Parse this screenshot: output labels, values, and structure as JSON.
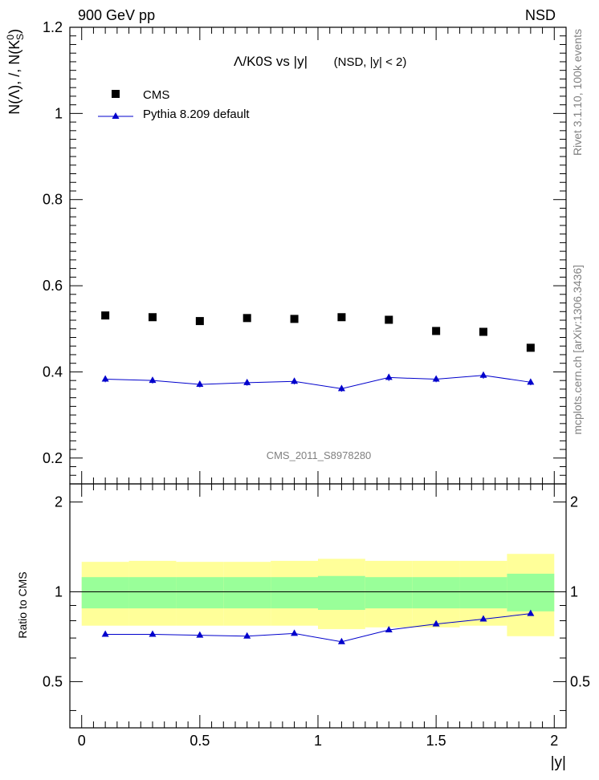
{
  "header": {
    "left": "900 GeV pp",
    "right": "NSD"
  },
  "side_labels": {
    "rivet": "Rivet 3.1.10,  100k events",
    "mcplots": "mcplots.cern.ch [arXiv:1306.3436]"
  },
  "chart_data": [
    {
      "type": "scatter",
      "title": "Λ/K0S vs |y|",
      "subtitle": "(NSD, |y| < 2)",
      "ylabel": "N(Λ), /, N(K",
      "ylabel_sup": "0",
      "ylabel_sub": "S",
      "ylabel_close": ")",
      "xlabel": "",
      "xlim": [
        -0.05,
        2.05
      ],
      "ylim": [
        0.14,
        1.2
      ],
      "yticks": [
        0.2,
        0.4,
        0.6,
        0.8,
        1,
        1.2
      ],
      "ytick_labels": [
        "0.2",
        "0.4",
        "0.6",
        "0.8",
        "1",
        "1.2"
      ],
      "watermark": "CMS_2011_S8978280",
      "legend_position": "top-left",
      "series": [
        {
          "name": "CMS",
          "marker": "square",
          "color": "#000000",
          "x": [
            0.1,
            0.3,
            0.5,
            0.7,
            0.9,
            1.1,
            1.3,
            1.5,
            1.7,
            1.9
          ],
          "y": [
            0.531,
            0.527,
            0.518,
            0.525,
            0.523,
            0.527,
            0.521,
            0.495,
            0.493,
            0.456
          ]
        },
        {
          "name": "Pythia 8.209 default",
          "marker": "triangle",
          "color": "#0000cc",
          "x": [
            0.1,
            0.3,
            0.5,
            0.7,
            0.9,
            1.1,
            1.3,
            1.5,
            1.7,
            1.9
          ],
          "y": [
            0.383,
            0.38,
            0.371,
            0.375,
            0.378,
            0.361,
            0.387,
            0.383,
            0.392,
            0.376
          ],
          "yerr": [
            0.007,
            0.007,
            0.007,
            0.007,
            0.007,
            0.007,
            0.008,
            0.007,
            0.008,
            0.007
          ]
        }
      ]
    },
    {
      "type": "line",
      "title": "",
      "ylabel": "Ratio to CMS",
      "xlabel": "|y|",
      "xlim": [
        -0.05,
        2.05
      ],
      "ylim": [
        0.35,
        2.3
      ],
      "xticks": [
        0,
        0.5,
        1,
        1.5,
        2
      ],
      "xtick_labels": [
        "0",
        "0.5",
        "1",
        "1.5",
        "2"
      ],
      "yticks": [
        0.5,
        1,
        2
      ],
      "ytick_labels": [
        "0.5",
        "1",
        "2"
      ],
      "bands": {
        "bin_edges": [
          0.0,
          0.2,
          0.4,
          0.6,
          0.8,
          1.0,
          1.2,
          1.4,
          1.6,
          1.8,
          2.0
        ],
        "stat_lo": [
          0.88,
          0.88,
          0.88,
          0.88,
          0.88,
          0.87,
          0.88,
          0.88,
          0.88,
          0.86
        ],
        "stat_hi": [
          1.12,
          1.12,
          1.12,
          1.12,
          1.12,
          1.13,
          1.12,
          1.12,
          1.12,
          1.15
        ],
        "total_lo": [
          0.77,
          0.77,
          0.77,
          0.77,
          0.77,
          0.75,
          0.76,
          0.76,
          0.77,
          0.71
        ],
        "total_hi": [
          1.26,
          1.27,
          1.26,
          1.26,
          1.27,
          1.29,
          1.27,
          1.27,
          1.27,
          1.34
        ],
        "stat_color": "#99ff99",
        "total_color": "#ffff99"
      },
      "series": [
        {
          "name": "Pythia 8.209 default",
          "color": "#0000cc",
          "x": [
            0.1,
            0.3,
            0.5,
            0.7,
            0.9,
            1.1,
            1.3,
            1.5,
            1.7,
            1.9
          ],
          "y": [
            0.72,
            0.72,
            0.715,
            0.71,
            0.725,
            0.68,
            0.745,
            0.78,
            0.81,
            0.845
          ]
        }
      ]
    }
  ]
}
